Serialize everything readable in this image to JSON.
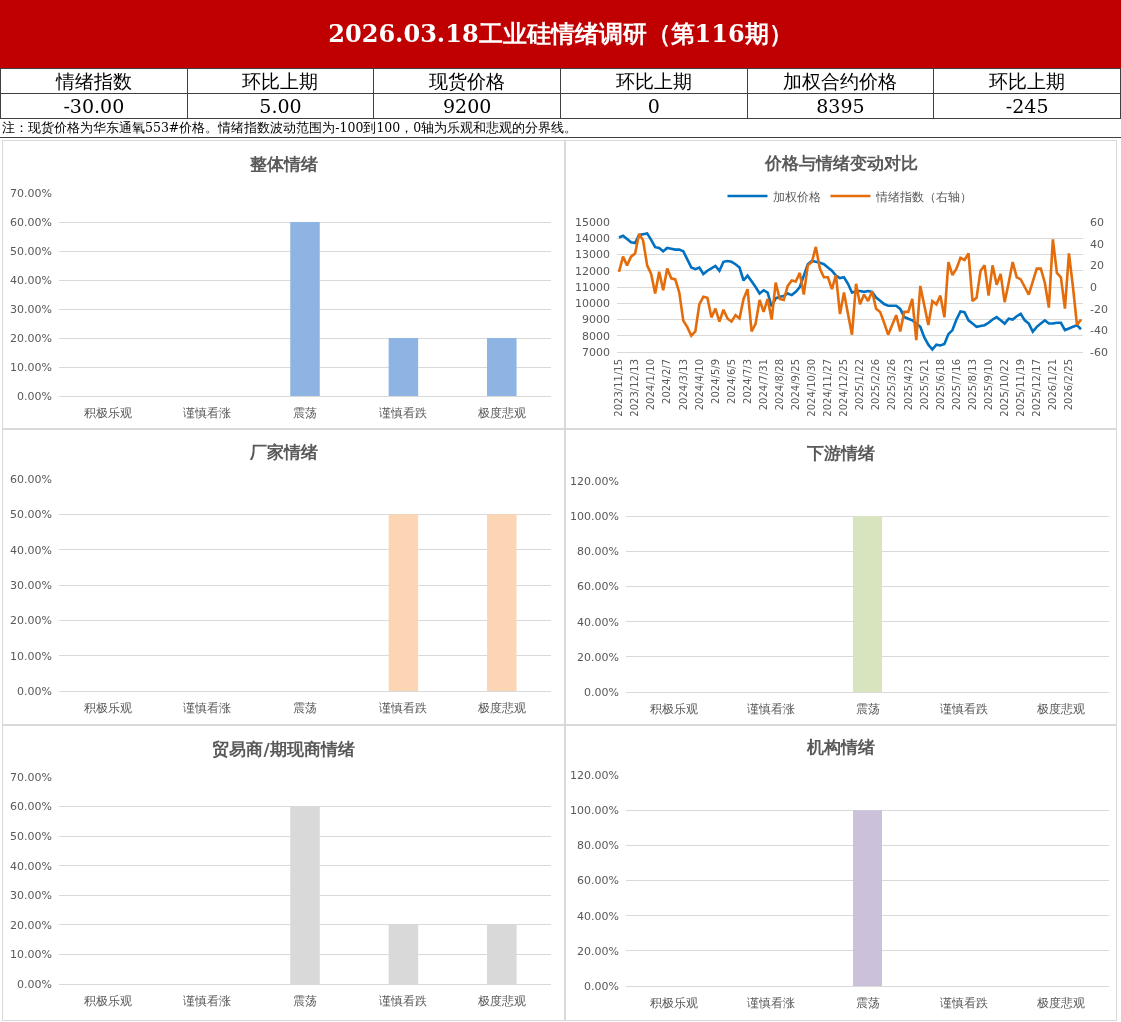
{
  "chart_data": [
    {
      "type": "other",
      "title": "2026.03.18工业硅情绪调研（第116期）",
      "categories": [
        "情绪指数",
        "环比上期",
        "现货价格",
        "环比上期",
        "加权合约价格",
        "环比上期"
      ],
      "value_labels": [
        "-30.00",
        "5.00",
        "9200",
        "0",
        "8395",
        "-245"
      ],
      "annotations": [
        "注：现货价格为华东通氧553#价格。情绪指数波动范围为-100到100，0轴为乐观和悲观的分界线。"
      ]
    },
    {
      "type": "bar",
      "title": "整体情绪",
      "categories": [
        "积极乐观",
        "谨慎看涨",
        "震荡",
        "谨慎看跌",
        "极度悲观"
      ],
      "values": [
        0,
        0,
        60,
        20,
        20
      ],
      "color": "#8eb4e3",
      "ylim": [
        0,
        70
      ],
      "yticks": [
        {
          "value": 0,
          "label": "0.00%"
        },
        {
          "value": 10,
          "label": "10.00%"
        },
        {
          "value": 20,
          "label": "20.00%"
        },
        {
          "value": 30,
          "label": "30.00%"
        },
        {
          "value": 40,
          "label": "40.00%"
        },
        {
          "value": 50,
          "label": "50.00%"
        },
        {
          "value": 60,
          "label": "60.00%"
        },
        {
          "value": 70,
          "label": "70.00%"
        }
      ],
      "grid": "y"
    },
    {
      "type": "line",
      "title": "价格与情绪变动对比",
      "categories": [
        "2023/11/15",
        null,
        null,
        null,
        "2023/12/13",
        null,
        null,
        null,
        "2024/1/10",
        null,
        null,
        null,
        "2024/2/7",
        null,
        null,
        null,
        "2024/3/13",
        null,
        null,
        null,
        "2024/4/10",
        null,
        null,
        null,
        "2024/5/9",
        null,
        null,
        null,
        "2024/6/5",
        null,
        null,
        null,
        "2024/7/3",
        null,
        null,
        null,
        "2024/7/31",
        null,
        null,
        null,
        "2024/8/28",
        null,
        null,
        null,
        "2024/9/25",
        null,
        null,
        null,
        "2024/10/30",
        null,
        null,
        null,
        "2024/11/27",
        null,
        null,
        null,
        "2024/12/25",
        null,
        null,
        null,
        "2025/1/22",
        null,
        null,
        null,
        "2025/2/26",
        null,
        null,
        null,
        "2025/3/26",
        null,
        null,
        null,
        "2025/4/23",
        null,
        null,
        null,
        "2025/5/21",
        null,
        null,
        null,
        "2025/6/18",
        null,
        null,
        null,
        "2025/7/16",
        null,
        null,
        null,
        "2025/8/13",
        null,
        null,
        null,
        "2025/9/10",
        null,
        null,
        null,
        "2025/10/22",
        null,
        null,
        null,
        "2025/11/19",
        null,
        null,
        null,
        "2025/12/17",
        null,
        null,
        null,
        "2026/1/21",
        null,
        null,
        null,
        "2026/2/25",
        null,
        null,
        null
      ],
      "series": [
        {
          "name": "加权价格",
          "color": "#0070c0",
          "values": [
            14050,
            14150,
            13950,
            13750,
            13700,
            14200,
            14250,
            14300,
            13900,
            13450,
            13400,
            13200,
            13400,
            13350,
            13300,
            13300,
            13200,
            12700,
            12200,
            12100,
            12200,
            11800,
            12000,
            12150,
            12300,
            12000,
            12550,
            12600,
            12550,
            12400,
            12200,
            11400,
            11700,
            11350,
            11000,
            10600,
            10800,
            10650,
            9800,
            10300,
            10400,
            10450,
            10600,
            10500,
            10700,
            11000,
            11700,
            12400,
            12600,
            12550,
            12500,
            12400,
            12200,
            12000,
            11700,
            11550,
            11600,
            11200,
            10650,
            10750,
            10750,
            10700,
            10750,
            10700,
            10350,
            10150,
            9950,
            9850,
            9850,
            9850,
            9650,
            9150,
            9050,
            8950,
            8750,
            8550,
            7900,
            7450,
            7150,
            7450,
            7400,
            7500,
            8100,
            8350,
            9000,
            9500,
            9450,
            8950,
            8750,
            8550,
            8600,
            8650,
            8800,
            9000,
            9150,
            8950,
            8750,
            9050,
            9000,
            9200,
            9350,
            8950,
            8750,
            8250,
            8550,
            8750,
            8950,
            8750,
            8750,
            8800,
            8800,
            8350,
            8450,
            8550,
            8650,
            8400
          ]
        },
        {
          "name": "情绪指数（右轴）",
          "color": "#e46c0a",
          "axis": "y2",
          "values": [
            14,
            28,
            20,
            28,
            31,
            49,
            43,
            20,
            12,
            -6,
            14,
            -3,
            17,
            8,
            7,
            -5,
            -31,
            -37,
            -45,
            -41,
            -16,
            -9,
            -10,
            -28,
            -20,
            -32,
            -21,
            -29,
            -32,
            -26,
            -29,
            -11,
            -2,
            -41,
            -34,
            -12,
            -23,
            -11,
            -30,
            4,
            -11,
            -12,
            1,
            6,
            5,
            13,
            -7,
            20,
            23,
            37,
            17,
            9,
            9,
            -2,
            11,
            -25,
            -5,
            -25,
            -44,
            3,
            -16,
            -7,
            -13,
            -4,
            -20,
            -23,
            -33,
            -44,
            -35,
            -26,
            -41,
            -23,
            -23,
            -11,
            -49,
            1,
            -17,
            -35,
            -13,
            -16,
            -8,
            -28,
            23,
            11,
            17,
            27,
            25,
            31,
            -13,
            -10,
            15,
            20,
            -8,
            20,
            2,
            12,
            -14,
            4,
            23,
            9,
            7,
            0,
            -7,
            5,
            17,
            17,
            4,
            -19,
            44,
            13,
            9,
            -20,
            31,
            0,
            -35,
            -30
          ]
        }
      ],
      "ylim": [
        7000,
        15000
      ],
      "yticks": [
        7000,
        8000,
        9000,
        10000,
        11000,
        12000,
        13000,
        14000,
        15000
      ],
      "y2lim": [
        -60,
        60
      ],
      "y2ticks": [
        -60,
        -40,
        -20,
        0,
        20,
        40,
        60
      ],
      "grid": "y",
      "legend": "top"
    },
    {
      "type": "bar",
      "title": "厂家情绪",
      "categories": [
        "积极乐观",
        "谨慎看涨",
        "震荡",
        "谨慎看跌",
        "极度悲观"
      ],
      "values": [
        0,
        0,
        0,
        50,
        50
      ],
      "color": "#fcd5b5",
      "ylim": [
        0,
        60
      ],
      "yticks": [
        {
          "value": 0,
          "label": "0.00%"
        },
        {
          "value": 10,
          "label": "10.00%"
        },
        {
          "value": 20,
          "label": "20.00%"
        },
        {
          "value": 30,
          "label": "30.00%"
        },
        {
          "value": 40,
          "label": "40.00%"
        },
        {
          "value": 50,
          "label": "50.00%"
        },
        {
          "value": 60,
          "label": "60.00%"
        }
      ],
      "grid": "y"
    },
    {
      "type": "bar",
      "title": "下游情绪",
      "categories": [
        "积极乐观",
        "谨慎看涨",
        "震荡",
        "谨慎看跌",
        "极度悲观"
      ],
      "values": [
        0,
        0,
        100,
        0,
        0
      ],
      "color": "#d7e4bd",
      "ylim": [
        0,
        120
      ],
      "yticks": [
        {
          "value": 0,
          "label": "0.00%"
        },
        {
          "value": 20,
          "label": "20.00%"
        },
        {
          "value": 40,
          "label": "40.00%"
        },
        {
          "value": 60,
          "label": "60.00%"
        },
        {
          "value": 80,
          "label": "80.00%"
        },
        {
          "value": 100,
          "label": "100.00%"
        },
        {
          "value": 120,
          "label": "120.00%"
        }
      ],
      "grid": "y"
    },
    {
      "type": "bar",
      "title": "贸易商/期现商情绪",
      "categories": [
        "积极乐观",
        "谨慎看涨",
        "震荡",
        "谨慎看跌",
        "极度悲观"
      ],
      "values": [
        0,
        0,
        60,
        20,
        20
      ],
      "color": "#d9d9d9",
      "ylim": [
        0,
        70
      ],
      "yticks": [
        {
          "value": 0,
          "label": "0.00%"
        },
        {
          "value": 10,
          "label": "10.00%"
        },
        {
          "value": 20,
          "label": "20.00%"
        },
        {
          "value": 30,
          "label": "30.00%"
        },
        {
          "value": 40,
          "label": "40.00%"
        },
        {
          "value": 50,
          "label": "50.00%"
        },
        {
          "value": 60,
          "label": "60.00%"
        },
        {
          "value": 70,
          "label": "70.00%"
        }
      ],
      "grid": "y"
    },
    {
      "type": "bar",
      "title": "机构情绪",
      "categories": [
        "积极乐观",
        "谨慎看涨",
        "震荡",
        "谨慎看跌",
        "极度悲观"
      ],
      "values": [
        0,
        0,
        100,
        0,
        0
      ],
      "color": "#ccc1da",
      "ylim": [
        0,
        120
      ],
      "yticks": [
        {
          "value": 0,
          "label": "0.00%"
        },
        {
          "value": 20,
          "label": "20.00%"
        },
        {
          "value": 40,
          "label": "40.00%"
        },
        {
          "value": 60,
          "label": "60.00%"
        },
        {
          "value": 80,
          "label": "80.00%"
        },
        {
          "value": 100,
          "label": "100.00%"
        },
        {
          "value": 120,
          "label": "120.00%"
        }
      ],
      "grid": "y"
    }
  ]
}
